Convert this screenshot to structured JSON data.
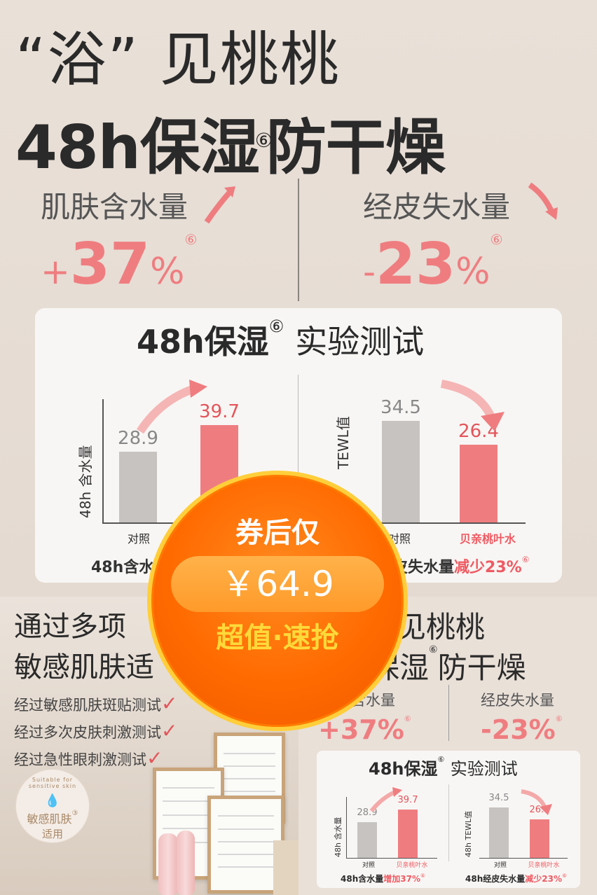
{
  "top": {
    "headline1": "“浴”  见桃桃",
    "headline2_prefix": "48h保湿",
    "headline2_sup": "⑥",
    "headline2_suffix": "防干燥",
    "left_label": "肌肤含水量",
    "left_sign": "+",
    "left_value": "37",
    "left_unit": "%",
    "left_sup": "⑥",
    "right_label": "经皮失水量",
    "right_sign": "-",
    "right_value": "23",
    "right_unit": "%",
    "right_sup": "⑥"
  },
  "card": {
    "title_prefix": "48h保湿",
    "title_sup": "⑥",
    "title_suffix": "实验测试",
    "left_chart": {
      "ylabel": "48h 含水量",
      "control_label": "对照",
      "caption": "48h含水"
    },
    "right_chart": {
      "ylabel": "TEWL值",
      "control_label": "对照",
      "product_label": "贝亲桃叶水",
      "caption_a": "皮失水量",
      "caption_b": "减少23%",
      "caption_sup": "⑥"
    }
  },
  "chart_data": [
    {
      "type": "bar",
      "categories": [
        "对照",
        ""
      ],
      "values": [
        28.9,
        39.7
      ],
      "ylabel": "48h 含水量"
    },
    {
      "type": "bar",
      "categories": [
        "对照",
        "贝亲桃叶水"
      ],
      "values": [
        34.5,
        26.4
      ],
      "ylabel": "TEWL值"
    }
  ],
  "badge": {
    "top_text": "券后仅",
    "price": "￥64.9",
    "bottom_text": "超值·速抢"
  },
  "bottom_left": {
    "title1": "通过多项",
    "title2": "敏感肌肤适",
    "checks": [
      "经过敏感肌肤斑贴测试",
      "经过多次皮肤刺激测试",
      "经过急性眼刺激测试"
    ],
    "seal_ring": "Suitable for sensitive skin",
    "seal_text1": "敏感肌肤",
    "seal_sup": "③",
    "seal_text2": "适用"
  },
  "bottom_right": {
    "title1": "见桃桃",
    "title2_prefix": "保湿",
    "title2_sup": "⑥",
    "title2_suffix": "防干燥",
    "left_label": "肤含水量",
    "left_pct": "+37%",
    "left_sup": "⑥",
    "right_label": "经皮失水量",
    "right_pct": "-23%",
    "right_sup": "⑥",
    "card_title_prefix": "48h保湿",
    "card_title_sup": "⑥",
    "card_title_suffix": "实验测试",
    "left_ylabel": "48h 含水量",
    "left_cat1": "对照",
    "left_cat2": "贝亲桃叶水",
    "left_caption_a": "48h含水量",
    "left_caption_b": "增加37%",
    "left_caption_sup": "⑥",
    "right_ylabel": "48h TEWL值",
    "right_cat1": "对照",
    "right_cat2": "贝亲桃叶水",
    "right_caption_a": "48h经皮失水量",
    "right_caption_b": "减少23%",
    "right_caption_sup": "⑥"
  },
  "mini_chart_data": [
    {
      "type": "bar",
      "categories": [
        "对照",
        "贝亲桃叶水"
      ],
      "values": [
        28.9,
        39.7
      ]
    },
    {
      "type": "bar",
      "categories": [
        "对照",
        "贝亲桃叶水"
      ],
      "values": [
        34.5,
        26.4
      ]
    }
  ],
  "colors": {
    "accent": "#ef7d80",
    "control": "#c6c3c0",
    "badge": "#ff6a00",
    "badge_ring": "#ffce3a"
  }
}
